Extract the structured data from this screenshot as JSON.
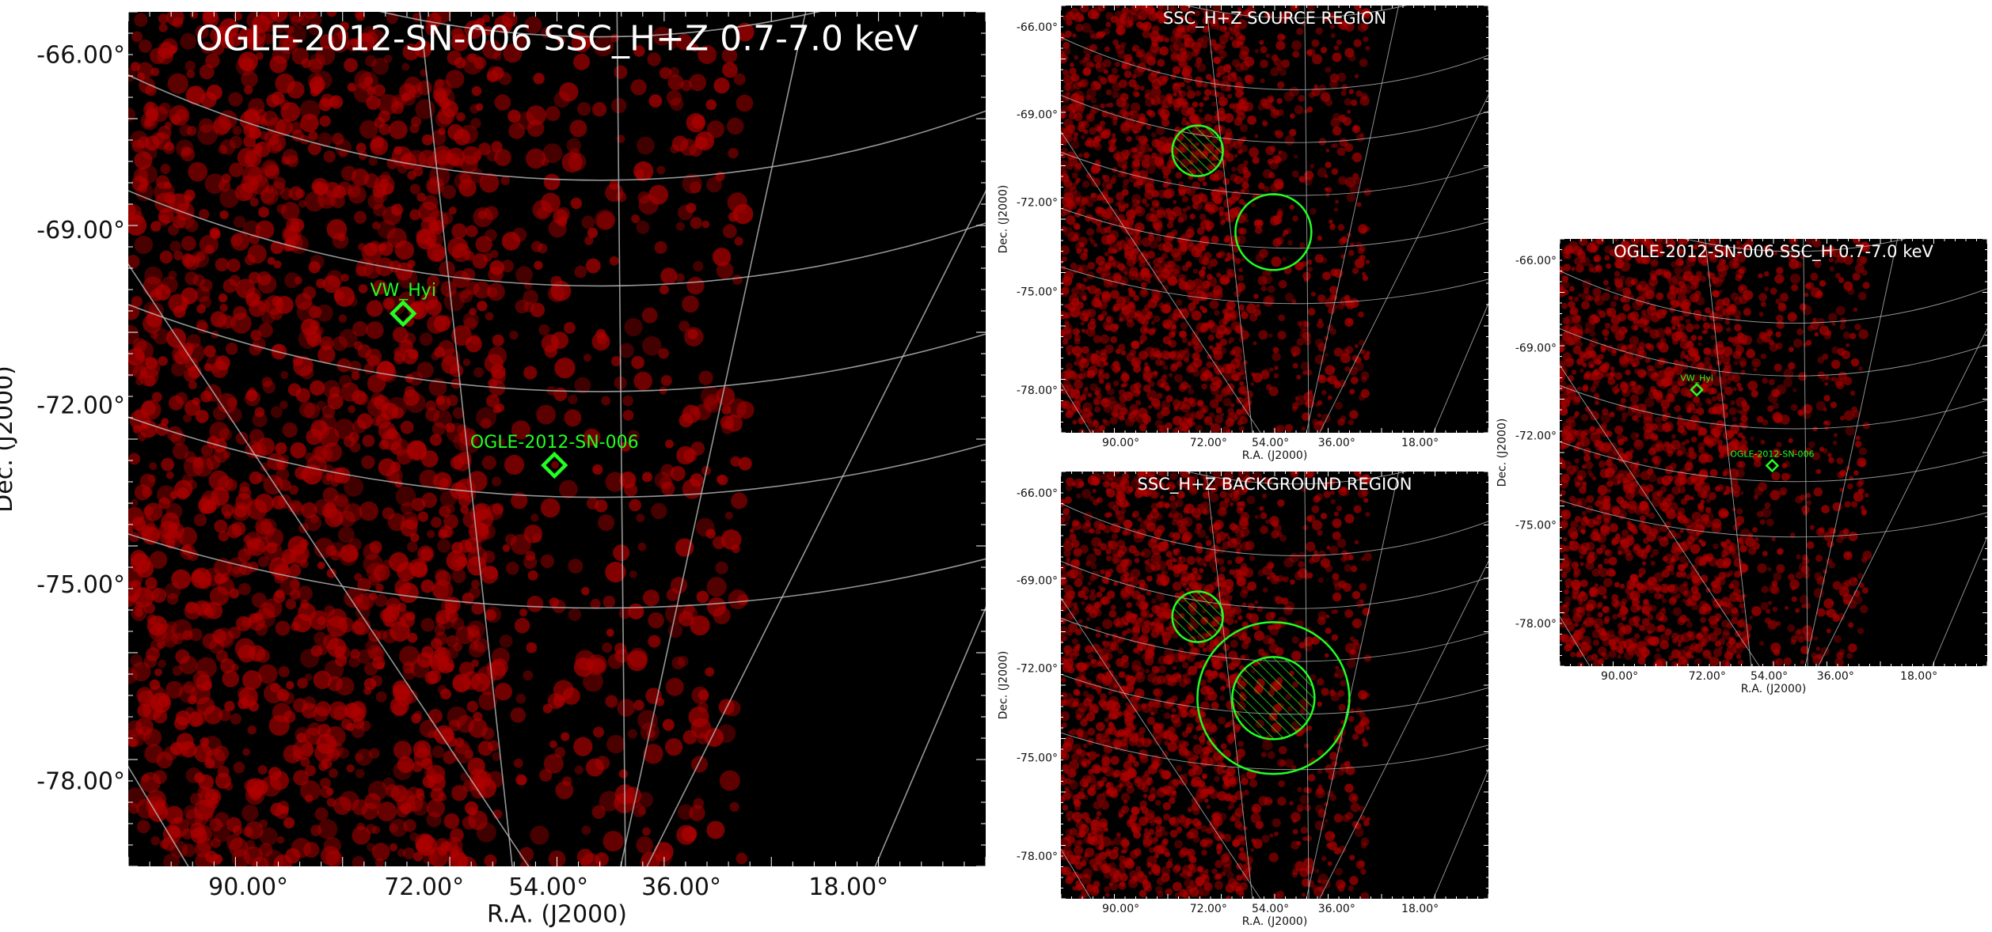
{
  "chart_data": [
    {
      "type": "scatter",
      "title": "OGLE-2012-SN-006 SSC_H+Z 0.7-7.0 keV",
      "xlabel": "R.A. (J2000)",
      "ylabel": "Dec. (J2000)",
      "xticks": [
        "90.00°",
        "72.00°",
        "54.00°",
        "36.00°",
        "18.00°"
      ],
      "yticks": [
        "-66.00°",
        "-69.00°",
        "-72.00°",
        "-75.00°",
        "-78.00°"
      ],
      "grid": true,
      "sources": [
        {
          "name": "VW_Hyi",
          "ra": 72,
          "dec": -70.0
        },
        {
          "name": "OGLE-2012-SN-006",
          "ra": 54,
          "dec": -72.5
        }
      ],
      "regions": []
    },
    {
      "type": "scatter",
      "title": "SSC_H+Z SOURCE REGION",
      "xlabel": "R.A. (J2000)",
      "ylabel": "Dec. (J2000)",
      "xticks": [
        "90.00°",
        "72.00°",
        "54.00°",
        "36.00°",
        "18.00°"
      ],
      "yticks": [
        "-66.00°",
        "-69.00°",
        "-72.00°",
        "-75.00°",
        "-78.00°"
      ],
      "grid": true,
      "sources": [],
      "regions": [
        {
          "kind": "circle",
          "ra": 72,
          "dec": -69.8,
          "r_deg": 0.8,
          "hatched": true
        },
        {
          "kind": "circle",
          "ra": 54,
          "dec": -72.5,
          "r_deg": 1.2,
          "hatched": false
        }
      ]
    },
    {
      "type": "scatter",
      "title": "SSC_H+Z BACKGROUND REGION",
      "xlabel": "R.A. (J2000)",
      "ylabel": "Dec. (J2000)",
      "xticks": [
        "90.00°",
        "72.00°",
        "54.00°",
        "36.00°",
        "18.00°"
      ],
      "yticks": [
        "-66.00°",
        "-69.00°",
        "-72.00°",
        "-75.00°",
        "-78.00°"
      ],
      "grid": true,
      "sources": [],
      "regions": [
        {
          "kind": "circle",
          "ra": 72,
          "dec": -69.8,
          "r_deg": 0.8,
          "hatched": true
        },
        {
          "kind": "circle",
          "ra": 54,
          "dec": -72.5,
          "r_deg": 1.3,
          "hatched": true
        },
        {
          "kind": "circle",
          "ra": 54,
          "dec": -72.5,
          "r_deg": 2.4,
          "hatched": false
        }
      ]
    },
    {
      "type": "scatter",
      "title": "OGLE-2012-SN-006 SSC_H 0.7-7.0 keV",
      "xlabel": "R.A. (J2000)",
      "ylabel": "Dec. (J2000)",
      "xticks": [
        "90.00°",
        "72.00°",
        "54.00°",
        "36.00°",
        "18.00°"
      ],
      "yticks": [
        "-66.00°",
        "-69.00°",
        "-72.00°",
        "-75.00°",
        "-78.00°"
      ],
      "grid": true,
      "sources": [
        {
          "name": "VW_Hyi",
          "ra": 72,
          "dec": -70.0
        },
        {
          "name": "OGLE-2012-SN-006",
          "ra": 54,
          "dec": -72.5
        }
      ],
      "regions": []
    }
  ],
  "colors": {
    "background": "#000000",
    "counts": "#b00000",
    "grid": "#bbbbbb",
    "markers": "#22ff22",
    "title": "#ffffff",
    "page": "#ffffff"
  }
}
